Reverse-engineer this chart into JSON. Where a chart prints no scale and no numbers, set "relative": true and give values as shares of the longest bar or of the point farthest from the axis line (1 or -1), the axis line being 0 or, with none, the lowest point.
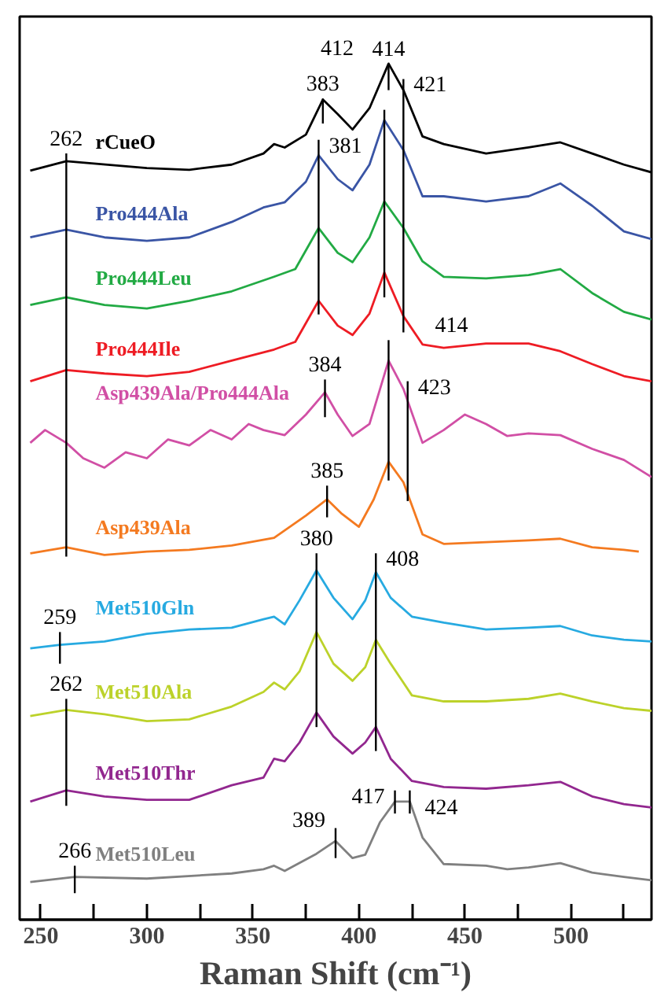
{
  "chart_data": {
    "type": "line",
    "relative": true,
    "xlabel": "Raman Shift (cm⁻¹)",
    "xlim": [
      240,
      538
    ],
    "xticks": [
      250,
      {
        "value": 275,
        "label": null
      },
      300,
      {
        "value": 325,
        "label": null
      },
      350,
      {
        "value": 375,
        "label": null
      },
      400,
      {
        "value": 425,
        "label": null
      },
      450,
      {
        "value": 475,
        "label": null
      },
      500,
      {
        "value": 525,
        "label": null
      }
    ],
    "grid": false,
    "legend": false,
    "marker": "none",
    "line_style": "solid",
    "series": [
      {
        "name": "rCueO",
        "color": "#000000",
        "x": [
          245,
          262,
          300,
          320,
          340,
          355,
          360,
          365,
          375,
          383,
          390,
          397,
          405,
          414,
          421,
          430,
          440,
          460,
          480,
          495,
          510,
          525,
          538
        ],
        "values": [
          0.875,
          0.886,
          0.878,
          0.876,
          0.882,
          0.895,
          0.906,
          0.902,
          0.917,
          0.958,
          0.941,
          0.923,
          0.948,
          1,
          0.969,
          0.915,
          0.906,
          0.895,
          0.902,
          0.908,
          0.895,
          0.882,
          0.873
        ]
      },
      {
        "name": "Pro444Ala",
        "color": "#3a55a5",
        "x": [
          245,
          262,
          280,
          300,
          320,
          340,
          355,
          365,
          375,
          381,
          390,
          397,
          405,
          412,
          421,
          430,
          440,
          460,
          480,
          495,
          510,
          525,
          538
        ],
        "values": [
          0.797,
          0.806,
          0.797,
          0.793,
          0.797,
          0.815,
          0.832,
          0.838,
          0.862,
          0.893,
          0.865,
          0.852,
          0.882,
          0.934,
          0.899,
          0.845,
          0.845,
          0.839,
          0.845,
          0.86,
          0.834,
          0.804,
          0.795
        ]
      },
      {
        "name": "Pro444Leu",
        "color": "#22aa44",
        "x": [
          245,
          262,
          280,
          300,
          320,
          340,
          360,
          370,
          381,
          390,
          397,
          405,
          412,
          421,
          430,
          440,
          460,
          480,
          495,
          510,
          525,
          538
        ],
        "values": [
          0.718,
          0.727,
          0.718,
          0.714,
          0.723,
          0.734,
          0.751,
          0.76,
          0.808,
          0.779,
          0.768,
          0.797,
          0.839,
          0.808,
          0.769,
          0.751,
          0.749,
          0.753,
          0.76,
          0.732,
          0.71,
          0.701
        ]
      },
      {
        "name": "Pro444Ile",
        "color": "#ee1c24",
        "x": [
          245,
          262,
          280,
          300,
          320,
          340,
          360,
          370,
          381,
          390,
          397,
          405,
          412,
          421,
          430,
          440,
          460,
          480,
          495,
          510,
          525,
          538
        ],
        "values": [
          0.629,
          0.642,
          0.638,
          0.635,
          0.64,
          0.653,
          0.666,
          0.675,
          0.723,
          0.694,
          0.683,
          0.708,
          0.756,
          0.705,
          0.672,
          0.668,
          0.673,
          0.673,
          0.664,
          0.649,
          0.635,
          0.629
        ]
      },
      {
        "name": "Asp439Ala/Pro444Ala",
        "color": "#d14fa5",
        "x": [
          245,
          252,
          262,
          270,
          280,
          290,
          300,
          310,
          320,
          330,
          340,
          348,
          355,
          365,
          375,
          384,
          390,
          397,
          405,
          414,
          421,
          430,
          440,
          450,
          460,
          470,
          480,
          495,
          510,
          525,
          538
        ],
        "values": [
          0.557,
          0.572,
          0.557,
          0.539,
          0.528,
          0.546,
          0.539,
          0.561,
          0.554,
          0.572,
          0.561,
          0.579,
          0.572,
          0.566,
          0.59,
          0.616,
          0.59,
          0.565,
          0.579,
          0.653,
          0.62,
          0.557,
          0.572,
          0.59,
          0.579,
          0.565,
          0.568,
          0.566,
          0.55,
          0.537,
          0.517
        ]
      },
      {
        "name": "Asp439Ala",
        "color": "#f47a20",
        "x": [
          245,
          262,
          280,
          300,
          320,
          340,
          360,
          375,
          385,
          392,
          400,
          407,
          414,
          421,
          430,
          440,
          460,
          480,
          495,
          510,
          525,
          532
        ],
        "values": [
          0.428,
          0.435,
          0.426,
          0.43,
          0.432,
          0.437,
          0.446,
          0.472,
          0.491,
          0.474,
          0.459,
          0.491,
          0.535,
          0.511,
          0.45,
          0.439,
          0.441,
          0.443,
          0.445,
          0.435,
          0.432,
          0.43
        ]
      },
      {
        "name": "Met510Gln",
        "color": "#27aae1",
        "x": [
          245,
          259,
          280,
          300,
          320,
          340,
          355,
          360,
          365,
          372,
          380,
          388,
          397,
          403,
          408,
          415,
          425,
          440,
          460,
          480,
          495,
          510,
          525,
          538
        ],
        "values": [
          0.317,
          0.321,
          0.325,
          0.334,
          0.339,
          0.341,
          0.351,
          0.354,
          0.345,
          0.373,
          0.408,
          0.376,
          0.351,
          0.373,
          0.406,
          0.376,
          0.354,
          0.347,
          0.339,
          0.341,
          0.343,
          0.332,
          0.327,
          0.325
        ]
      },
      {
        "name": "Met510Ala",
        "color": "#bcd22a",
        "x": [
          245,
          262,
          280,
          300,
          320,
          340,
          355,
          360,
          365,
          372,
          380,
          388,
          397,
          403,
          408,
          415,
          425,
          440,
          460,
          480,
          495,
          510,
          525,
          538
        ],
        "values": [
          0.238,
          0.245,
          0.24,
          0.232,
          0.234,
          0.249,
          0.266,
          0.277,
          0.269,
          0.29,
          0.336,
          0.299,
          0.279,
          0.295,
          0.327,
          0.299,
          0.262,
          0.255,
          0.255,
          0.258,
          0.264,
          0.255,
          0.247,
          0.244
        ]
      },
      {
        "name": "Met510Thr",
        "color": "#92278f",
        "x": [
          245,
          262,
          280,
          300,
          320,
          340,
          355,
          360,
          365,
          372,
          380,
          388,
          397,
          403,
          408,
          415,
          425,
          440,
          460,
          480,
          495,
          510,
          525,
          538
        ],
        "values": [
          0.138,
          0.151,
          0.144,
          0.14,
          0.14,
          0.157,
          0.166,
          0.188,
          0.185,
          0.207,
          0.242,
          0.214,
          0.194,
          0.207,
          0.225,
          0.188,
          0.162,
          0.155,
          0.153,
          0.157,
          0.161,
          0.144,
          0.135,
          0.131
        ]
      },
      {
        "name": "Met510Leu",
        "color": "#808080",
        "x": [
          245,
          266,
          300,
          340,
          355,
          360,
          365,
          380,
          389,
          397,
          403,
          410,
          417,
          424,
          430,
          440,
          460,
          470,
          480,
          495,
          510,
          525,
          538
        ],
        "values": [
          0.044,
          0.05,
          0.048,
          0.054,
          0.059,
          0.063,
          0.057,
          0.077,
          0.092,
          0.072,
          0.076,
          0.114,
          0.138,
          0.138,
          0.096,
          0.065,
          0.063,
          0.059,
          0.061,
          0.066,
          0.055,
          0.05,
          0.046
        ]
      },
      {
        "color": "#000000",
        "x": [
          262,
          262
        ],
        "values": [
          0.895,
          0.424
        ]
      },
      {
        "color": "#000000",
        "x": [
          383,
          383
        ],
        "values": [
          0.959,
          0.93
        ]
      },
      {
        "color": "#000000",
        "x": [
          414,
          414
        ],
        "values": [
          1,
          0.969
        ]
      },
      {
        "color": "#000000",
        "x": [
          421,
          421
        ],
        "values": [
          0.982,
          0.686
        ]
      },
      {
        "color": "#000000",
        "x": [
          381,
          381
        ],
        "values": [
          0.911,
          0.707
        ]
      },
      {
        "color": "#000000",
        "x": [
          412,
          412
        ],
        "values": [
          0.946,
          0.727
        ]
      },
      {
        "color": "#000000",
        "x": [
          384,
          384
        ],
        "values": [
          0.631,
          0.587
        ]
      },
      {
        "color": "#000000",
        "x": [
          414,
          414
        ],
        "values": [
          0.677,
          0.513
        ]
      },
      {
        "color": "#000000",
        "x": [
          423,
          423
        ],
        "values": [
          0.629,
          0.489
        ]
      },
      {
        "color": "#000000",
        "x": [
          385,
          385
        ],
        "values": [
          0.507,
          0.47
        ]
      },
      {
        "color": "#000000",
        "x": [
          380,
          380
        ],
        "values": [
          0.428,
          0.225
        ]
      },
      {
        "color": "#000000",
        "x": [
          408,
          408
        ],
        "values": [
          0.428,
          0.197
        ]
      },
      {
        "color": "#000000",
        "x": [
          259,
          259
        ],
        "values": [
          0.336,
          0.299
        ]
      },
      {
        "color": "#000000",
        "x": [
          262,
          262
        ],
        "values": [
          0.258,
          0.133
        ]
      },
      {
        "color": "#000000",
        "x": [
          417,
          417
        ],
        "values": [
          0.151,
          0.124
        ]
      },
      {
        "color": "#000000",
        "x": [
          424,
          424
        ],
        "values": [
          0.151,
          0.124
        ]
      },
      {
        "color": "#000000",
        "x": [
          389,
          389
        ],
        "values": [
          0.107,
          0.072
        ]
      },
      {
        "color": "#000000",
        "x": [
          266,
          266
        ],
        "values": [
          0.063,
          0.031
        ]
      }
    ],
    "annotations": [
      {
        "text": "262",
        "x": 262,
        "y": 0.895
      },
      {
        "text": "383",
        "x": 383,
        "y": 0.959
      },
      {
        "text": "414",
        "x": 414,
        "y": 1
      },
      {
        "text": "421",
        "x": 421,
        "y": 0.982
      },
      {
        "text": "381",
        "x": 381,
        "y": 0.911
      },
      {
        "text": "412",
        "x": 412,
        "y": 0.946
      },
      {
        "text": "384",
        "x": 384,
        "y": 0.631
      },
      {
        "text": "414",
        "x": 414,
        "y": 0.677
      },
      {
        "text": "423",
        "x": 423,
        "y": 0.629
      },
      {
        "text": "385",
        "x": 385,
        "y": 0.507
      },
      {
        "text": "380",
        "x": 380,
        "y": 0.428
      },
      {
        "text": "408",
        "x": 408,
        "y": 0.428
      },
      {
        "text": "259",
        "x": 259,
        "y": 0.336
      },
      {
        "text": "262",
        "x": 262,
        "y": 0.258
      },
      {
        "text": "417",
        "x": 417,
        "y": 0.151
      },
      {
        "text": "424",
        "x": 424,
        "y": 0.151
      },
      {
        "text": "389",
        "x": 389,
        "y": 0.107
      },
      {
        "text": "266",
        "x": 266,
        "y": 0.063
      }
    ]
  }
}
